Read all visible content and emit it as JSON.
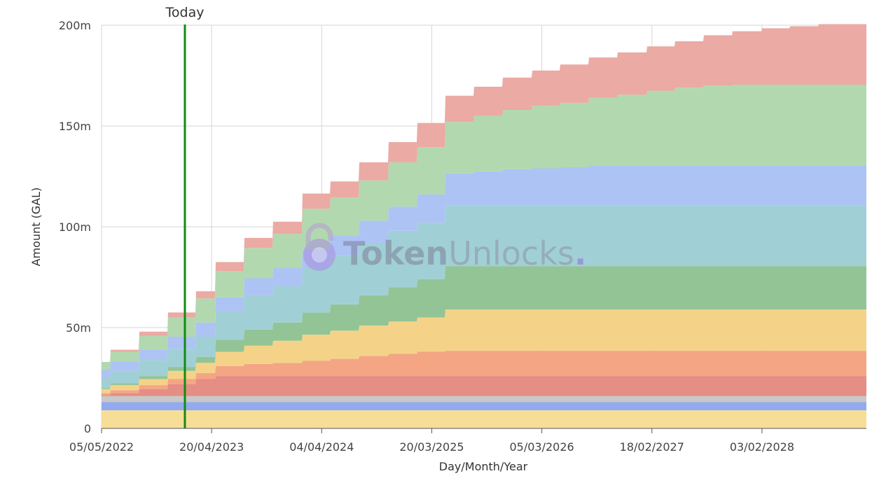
{
  "chart_data": {
    "type": "area",
    "stacked": true,
    "step": true,
    "xlabel": "Day/Month/Year",
    "ylabel": "Amount (GAL)",
    "x_start": "05/05/2022",
    "x_end": "31/12/2028",
    "x_ticks": [
      "05/05/2022",
      "20/04/2023",
      "04/04/2024",
      "20/03/2025",
      "05/03/2026",
      "18/02/2027",
      "03/02/2028"
    ],
    "ylim": [
      0,
      200
    ],
    "y_unit_suffix": "m",
    "y_ticks": [
      0,
      50,
      100,
      150,
      200
    ],
    "y_tick_labels": [
      "0",
      "50m",
      "100m",
      "150m",
      "200m"
    ],
    "grid": true,
    "today": {
      "date": "25/01/2023",
      "label": "Today",
      "color": "#138a13"
    },
    "watermark": {
      "bold": "Token",
      "light": "Unlocks",
      "dot": "."
    },
    "series": [
      {
        "color": "#f7de96",
        "points": [
          [
            "05/05/2022",
            9
          ],
          [
            "31/12/2028",
            9
          ]
        ]
      },
      {
        "color": "#91aaf0",
        "points": [
          [
            "05/05/2022",
            4
          ],
          [
            "31/12/2028",
            4
          ]
        ]
      },
      {
        "color": "#c8c8c8",
        "points": [
          [
            "05/05/2022",
            3
          ],
          [
            "31/12/2028",
            3
          ]
        ]
      },
      {
        "color": "#e58e85",
        "points": [
          [
            "05/05/2022",
            0.5
          ],
          [
            "01/06/2022",
            1.5
          ],
          [
            "01/09/2022",
            3.5
          ],
          [
            "01/12/2022",
            6
          ],
          [
            "01/03/2023",
            8.5
          ],
          [
            "01/05/2023",
            10
          ],
          [
            "31/12/2028",
            10
          ]
        ]
      },
      {
        "color": "#f4a684",
        "points": [
          [
            "05/05/2022",
            1
          ],
          [
            "01/06/2022",
            1.5
          ],
          [
            "01/09/2022",
            2
          ],
          [
            "01/12/2022",
            2.5
          ],
          [
            "01/03/2023",
            3
          ],
          [
            "01/05/2023",
            5
          ],
          [
            "01/08/2023",
            6
          ],
          [
            "01/11/2023",
            6.5
          ],
          [
            "01/02/2024",
            7.5
          ],
          [
            "01/05/2024",
            8.5
          ],
          [
            "01/08/2024",
            10
          ],
          [
            "01/11/2024",
            11
          ],
          [
            "01/02/2025",
            12
          ],
          [
            "01/05/2025",
            12.5
          ],
          [
            "31/12/2028",
            12.5
          ]
        ]
      },
      {
        "color": "#f4d389",
        "points": [
          [
            "05/05/2022",
            2
          ],
          [
            "01/06/2022",
            2.5
          ],
          [
            "01/09/2022",
            3
          ],
          [
            "01/12/2022",
            4
          ],
          [
            "01/03/2023",
            5
          ],
          [
            "01/05/2023",
            7
          ],
          [
            "01/08/2023",
            9
          ],
          [
            "01/11/2023",
            11
          ],
          [
            "01/02/2024",
            13
          ],
          [
            "01/05/2024",
            14
          ],
          [
            "01/08/2024",
            15
          ],
          [
            "01/11/2024",
            16
          ],
          [
            "01/02/2025",
            17
          ],
          [
            "01/05/2025",
            20.5
          ],
          [
            "31/12/2028",
            20.5
          ]
        ]
      },
      {
        "color": "#93c496",
        "points": [
          [
            "05/05/2022",
            0.5
          ],
          [
            "01/06/2022",
            1
          ],
          [
            "01/09/2022",
            1.5
          ],
          [
            "01/12/2022",
            2
          ],
          [
            "01/03/2023",
            3
          ],
          [
            "01/05/2023",
            6
          ],
          [
            "01/08/2023",
            8
          ],
          [
            "01/11/2023",
            9
          ],
          [
            "01/02/2024",
            11
          ],
          [
            "01/05/2024",
            13
          ],
          [
            "01/08/2024",
            15
          ],
          [
            "01/11/2024",
            17
          ],
          [
            "01/02/2025",
            19
          ],
          [
            "01/05/2025",
            21.5
          ],
          [
            "31/12/2028",
            21.5
          ]
        ]
      },
      {
        "color": "#a0d0d5",
        "points": [
          [
            "05/05/2022",
            5
          ],
          [
            "01/06/2022",
            6
          ],
          [
            "01/09/2022",
            8
          ],
          [
            "01/12/2022",
            9
          ],
          [
            "01/03/2023",
            10
          ],
          [
            "01/05/2023",
            14
          ],
          [
            "01/08/2023",
            17
          ],
          [
            "01/11/2023",
            18
          ],
          [
            "01/02/2024",
            22
          ],
          [
            "01/05/2024",
            24
          ],
          [
            "01/08/2024",
            26
          ],
          [
            "01/11/2024",
            28
          ],
          [
            "01/02/2025",
            28
          ],
          [
            "01/05/2025",
            30
          ],
          [
            "31/12/2028",
            30
          ]
        ]
      },
      {
        "color": "#adc3f4",
        "points": [
          [
            "05/05/2022",
            4
          ],
          [
            "01/06/2022",
            4.5
          ],
          [
            "01/09/2022",
            5
          ],
          [
            "01/12/2022",
            6
          ],
          [
            "01/03/2023",
            7
          ],
          [
            "01/05/2023",
            7
          ],
          [
            "01/08/2023",
            8.5
          ],
          [
            "01/11/2023",
            9
          ],
          [
            "01/02/2024",
            9.5
          ],
          [
            "01/05/2024",
            10
          ],
          [
            "01/08/2024",
            11
          ],
          [
            "01/11/2024",
            12
          ],
          [
            "01/02/2025",
            14
          ],
          [
            "01/05/2025",
            16
          ],
          [
            "01/08/2025",
            17
          ],
          [
            "01/11/2025",
            18
          ],
          [
            "01/02/2026",
            18.5
          ],
          [
            "01/05/2026",
            19
          ],
          [
            "01/08/2026",
            20
          ],
          [
            "31/12/2028",
            20
          ]
        ]
      },
      {
        "color": "#b2d8b0",
        "points": [
          [
            "05/05/2022",
            4
          ],
          [
            "01/06/2022",
            5
          ],
          [
            "01/09/2022",
            7
          ],
          [
            "01/12/2022",
            9.5
          ],
          [
            "01/03/2023",
            12
          ],
          [
            "01/05/2023",
            13
          ],
          [
            "01/08/2023",
            15
          ],
          [
            "01/11/2023",
            17
          ],
          [
            "01/02/2024",
            20
          ],
          [
            "01/05/2024",
            19
          ],
          [
            "01/08/2024",
            20
          ],
          [
            "01/11/2024",
            22
          ],
          [
            "01/02/2025",
            23.5
          ],
          [
            "01/05/2025",
            25.5
          ],
          [
            "01/08/2025",
            27.5
          ],
          [
            "01/11/2025",
            29.5
          ],
          [
            "01/02/2026",
            31
          ],
          [
            "01/05/2026",
            32
          ],
          [
            "01/08/2026",
            33.5
          ],
          [
            "01/11/2026",
            35
          ],
          [
            "01/02/2027",
            37
          ],
          [
            "01/05/2027",
            38.5
          ],
          [
            "01/08/2027",
            39.5
          ],
          [
            "01/11/2027",
            40
          ],
          [
            "31/12/2028",
            40
          ]
        ]
      },
      {
        "color": "#ebaaa4",
        "points": [
          [
            "05/05/2022",
            0
          ],
          [
            "01/06/2022",
            1
          ],
          [
            "01/09/2022",
            2
          ],
          [
            "01/12/2022",
            2.5
          ],
          [
            "01/03/2023",
            3.5
          ],
          [
            "01/05/2023",
            4.5
          ],
          [
            "01/08/2023",
            5
          ],
          [
            "01/11/2023",
            6
          ],
          [
            "01/02/2024",
            7.5
          ],
          [
            "01/05/2024",
            8
          ],
          [
            "01/08/2024",
            9
          ],
          [
            "01/11/2024",
            10
          ],
          [
            "01/02/2025",
            12
          ],
          [
            "01/05/2025",
            13
          ],
          [
            "01/08/2025",
            14.5
          ],
          [
            "01/11/2025",
            16
          ],
          [
            "01/02/2026",
            17.5
          ],
          [
            "01/05/2026",
            19
          ],
          [
            "01/08/2026",
            20
          ],
          [
            "01/11/2026",
            21
          ],
          [
            "01/02/2027",
            22
          ],
          [
            "01/05/2027",
            23
          ],
          [
            "01/08/2027",
            25
          ],
          [
            "01/11/2027",
            26.5
          ],
          [
            "01/02/2028",
            28
          ],
          [
            "01/05/2028",
            29
          ],
          [
            "01/08/2028",
            30
          ],
          [
            "31/12/2028",
            30
          ]
        ]
      }
    ]
  }
}
